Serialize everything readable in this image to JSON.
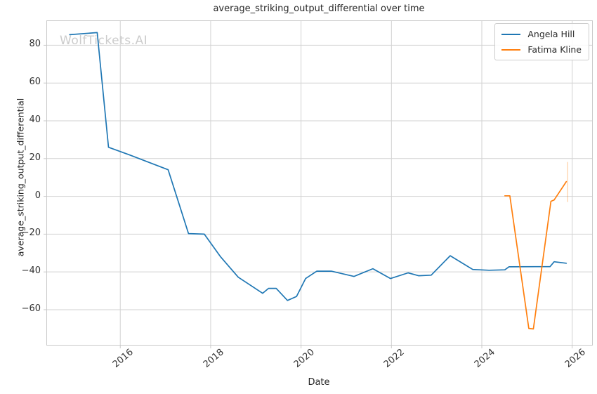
{
  "title": "average_striking_output_differential over time",
  "watermark": "WolfTickets.AI",
  "xlabel": "Date",
  "ylabel": "average_striking_output_differential",
  "legend": [
    {
      "label": "Angela Hill",
      "color": "#1f77b4"
    },
    {
      "label": "Fatima Kline",
      "color": "#ff7f0e"
    }
  ],
  "colors": {
    "series_blue": "#1f77b4",
    "series_orange": "#ff7f0e",
    "grid": "#d2d2d2",
    "spine": "#c9c9c9",
    "watermark": "#cccccc"
  },
  "chart_data": {
    "type": "line",
    "title": "average_striking_output_differential over time",
    "xlabel": "Date",
    "ylabel": "average_striking_output_differential",
    "xlim": [
      2014.38,
      2026.44
    ],
    "ylim": [
      -78.6,
      92.8
    ],
    "x_ticks": [
      2016,
      2018,
      2020,
      2022,
      2024,
      2026
    ],
    "y_ticks": [
      80,
      60,
      40,
      20,
      0,
      -20,
      -40,
      -60
    ],
    "grid": true,
    "legend_position": "upper right",
    "series": [
      {
        "name": "Angela Hill",
        "color": "#1f77b4",
        "x": [
          2014.88,
          2015.49,
          2015.74,
          2016.2,
          2017.06,
          2017.51,
          2017.86,
          2018.22,
          2018.61,
          2018.87,
          2019.15,
          2019.28,
          2019.45,
          2019.7,
          2019.9,
          2020.1,
          2020.35,
          2020.67,
          2021.17,
          2021.59,
          2021.98,
          2022.37,
          2022.6,
          2022.88,
          2023.3,
          2023.8,
          2024.16,
          2024.51,
          2024.6,
          2025.51,
          2025.6,
          2025.87
        ],
        "y": [
          85.6,
          86.7,
          26.0,
          22.0,
          14.1,
          -19.7,
          -20.0,
          -32.0,
          -42.8,
          -46.9,
          -51.3,
          -48.7,
          -48.7,
          -55.1,
          -53.0,
          -43.5,
          -39.6,
          -39.6,
          -42.4,
          -38.3,
          -43.5,
          -40.5,
          -42.0,
          -41.7,
          -31.4,
          -38.7,
          -39.1,
          -38.9,
          -37.3,
          -37.2,
          -34.6,
          -35.4
        ]
      },
      {
        "name": "Fatima Kline",
        "color": "#ff7f0e",
        "x": [
          2024.51,
          2024.62,
          2025.04,
          2025.14,
          2025.53,
          2025.6,
          2025.87
        ],
        "y": [
          0.3,
          0.3,
          -69.9,
          -70.2,
          -2.6,
          -1.9,
          7.8
        ]
      }
    ],
    "error_bar": {
      "series": "Fatima Kline",
      "x": 2025.9,
      "y_min": -3.0,
      "y_max": 18.2,
      "color": "#ff7f0e",
      "opacity": 0.3
    }
  }
}
